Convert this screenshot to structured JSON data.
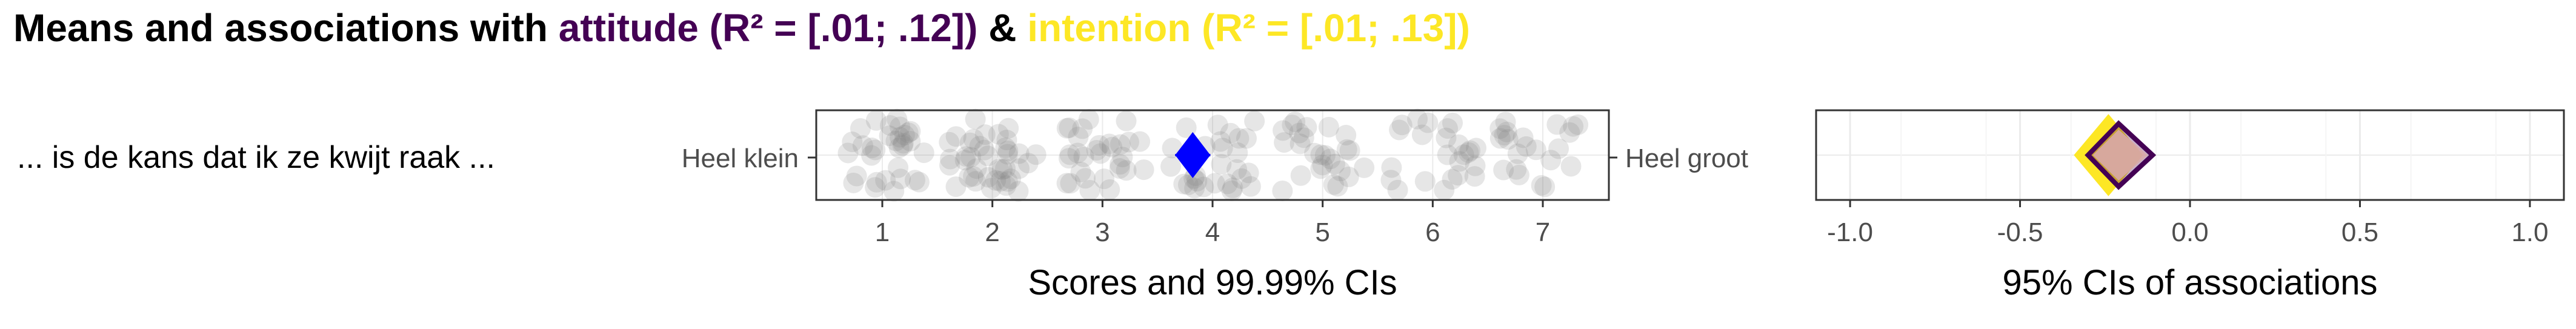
{
  "title": {
    "prefix": "Means and associations with ",
    "attitude": "attitude (R² = [.01; .12])",
    "connector": " & ",
    "intention": "intention (R² = [.01; .13])"
  },
  "colors": {
    "attitude": "#440154",
    "intention": "#FDE725",
    "mean_marker": "#0000FF",
    "jitter_points": "#808080",
    "panel_border": "#333333",
    "grid": "#EBEBEB",
    "text": "#000000",
    "axis_text": "#4D4D4D"
  },
  "item": {
    "label": "... is de kans dat ik ze kwijt raak ...",
    "left_anchor": "Heel klein",
    "right_anchor": "Heel groot"
  },
  "chart_data": [
    {
      "type": "scatter",
      "subtype": "jittered scores with mean",
      "xlabel": "Scores and 99.99% CIs",
      "xlim": [
        0.4,
        7.6
      ],
      "xticks": [
        1,
        2,
        3,
        4,
        5,
        6,
        7
      ],
      "tick_labels": [
        "1",
        "2",
        "3",
        "4",
        "5",
        "6",
        "7"
      ],
      "grid": true,
      "mean": 3.82,
      "ci_lower": 3.66,
      "ci_upper": 3.98,
      "scale_points": [
        1,
        2,
        3,
        4,
        5,
        6,
        7
      ],
      "approx_point_counts": [
        32,
        40,
        30,
        28,
        26,
        24,
        22
      ]
    },
    {
      "type": "scatter",
      "subtype": "confidence intervals of associations",
      "xlabel": "95% CIs of associations",
      "xlim": [
        -1.1,
        1.1
      ],
      "xticks": [
        -1,
        -0.5,
        0,
        0.5,
        1
      ],
      "tick_labels": [
        "-1.0",
        "-0.5",
        "0.0",
        "0.5",
        "1.0"
      ],
      "grid": true,
      "series": [
        {
          "name": "intention",
          "estimate": -0.24,
          "ci_lower": -0.33,
          "ci_upper": -0.15
        },
        {
          "name": "attitude",
          "estimate": -0.21,
          "ci_lower": -0.3,
          "ci_upper": -0.11
        }
      ]
    }
  ]
}
